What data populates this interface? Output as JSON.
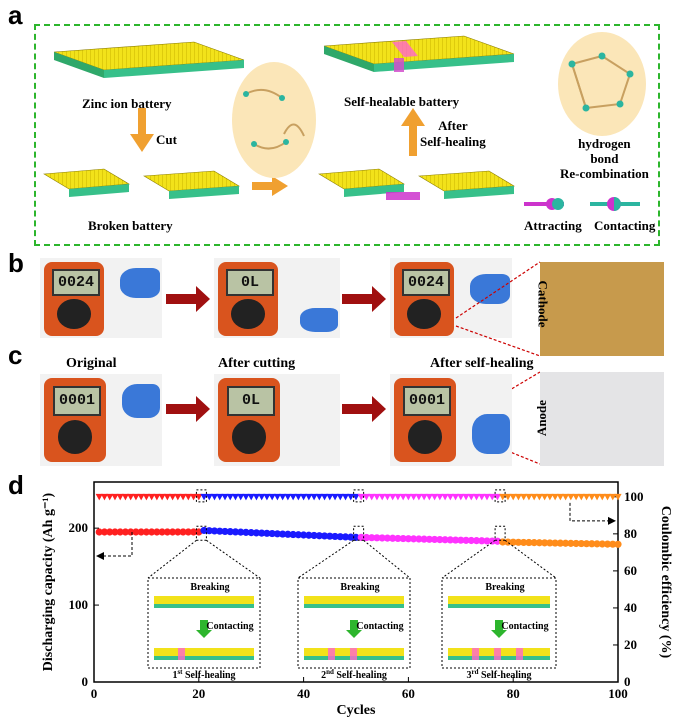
{
  "panels": {
    "a": "a",
    "b": "b",
    "c": "c",
    "d": "d"
  },
  "panel_a": {
    "zinc_ion_battery": "Zinc ion battery",
    "cut": "Cut",
    "broken_battery": "Broken battery",
    "self_healable_battery": "Self-healable battery",
    "after_self_healing": "After\nSelf-healing",
    "hydrogen_bond": "hydrogen\nbond\nRe-combination",
    "attracting": "Attracting",
    "contacting": "Contacting"
  },
  "panel_b": {
    "readings": [
      "0024",
      "0L",
      "0024"
    ],
    "photo_label": "Cathode"
  },
  "panel_c": {
    "captions": [
      "Original",
      "After cutting",
      "After self-healing"
    ],
    "readings": [
      "0001",
      "0L",
      "0001"
    ],
    "photo_label": "Anode"
  },
  "colors": {
    "red": "#ff2020",
    "blue": "#1a1aff",
    "magenta": "#ff33ff",
    "orange": "#ff8c1a",
    "arrow_red": "#a01010",
    "arrow_orange": "#f0a030"
  },
  "chart_data": {
    "type": "scatter",
    "xlabel": "Cycles",
    "ylabel_left": "Discharging capacity (Ah g⁻¹)",
    "ylabel_right": "Coulombic efficiency (%)",
    "xlim": [
      0,
      100
    ],
    "ylim_left": [
      0,
      260
    ],
    "ylim_right": [
      0,
      108
    ],
    "xticks": [
      0,
      20,
      40,
      60,
      80,
      100
    ],
    "yticks_left": [
      0,
      100,
      200
    ],
    "yticks_right": [
      0,
      20,
      40,
      60,
      80,
      100
    ],
    "segments": [
      {
        "name": "original",
        "color": "#ff2020",
        "x_start": 1,
        "x_end": 20,
        "capacity_start": 195,
        "capacity_end": 195,
        "efficiency": 100
      },
      {
        "name": "1st self-healing",
        "color": "#1a1aff",
        "x_start": 21,
        "x_end": 50,
        "capacity_start": 197,
        "capacity_end": 188,
        "efficiency": 100
      },
      {
        "name": "2nd self-healing",
        "color": "#ff33ff",
        "x_start": 51,
        "x_end": 77,
        "capacity_start": 188,
        "capacity_end": 183,
        "efficiency": 100
      },
      {
        "name": "3rd self-healing",
        "color": "#ff8c1a",
        "x_start": 78,
        "x_end": 100,
        "capacity_start": 182,
        "capacity_end": 179,
        "efficiency": 100
      }
    ],
    "insets": [
      {
        "top": "Breaking",
        "mid": "Contacting",
        "bottom_ordinal": "1",
        "bottom_sup": "st",
        "bottom_text": " Self-healing"
      },
      {
        "top": "Breaking",
        "mid": "Contacting",
        "bottom_ordinal": "2",
        "bottom_sup": "nd",
        "bottom_text": " Self-healing"
      },
      {
        "top": "Breaking",
        "mid": "Contacting",
        "bottom_ordinal": "3",
        "bottom_sup": "rd",
        "bottom_text": " Self-healing"
      }
    ]
  }
}
